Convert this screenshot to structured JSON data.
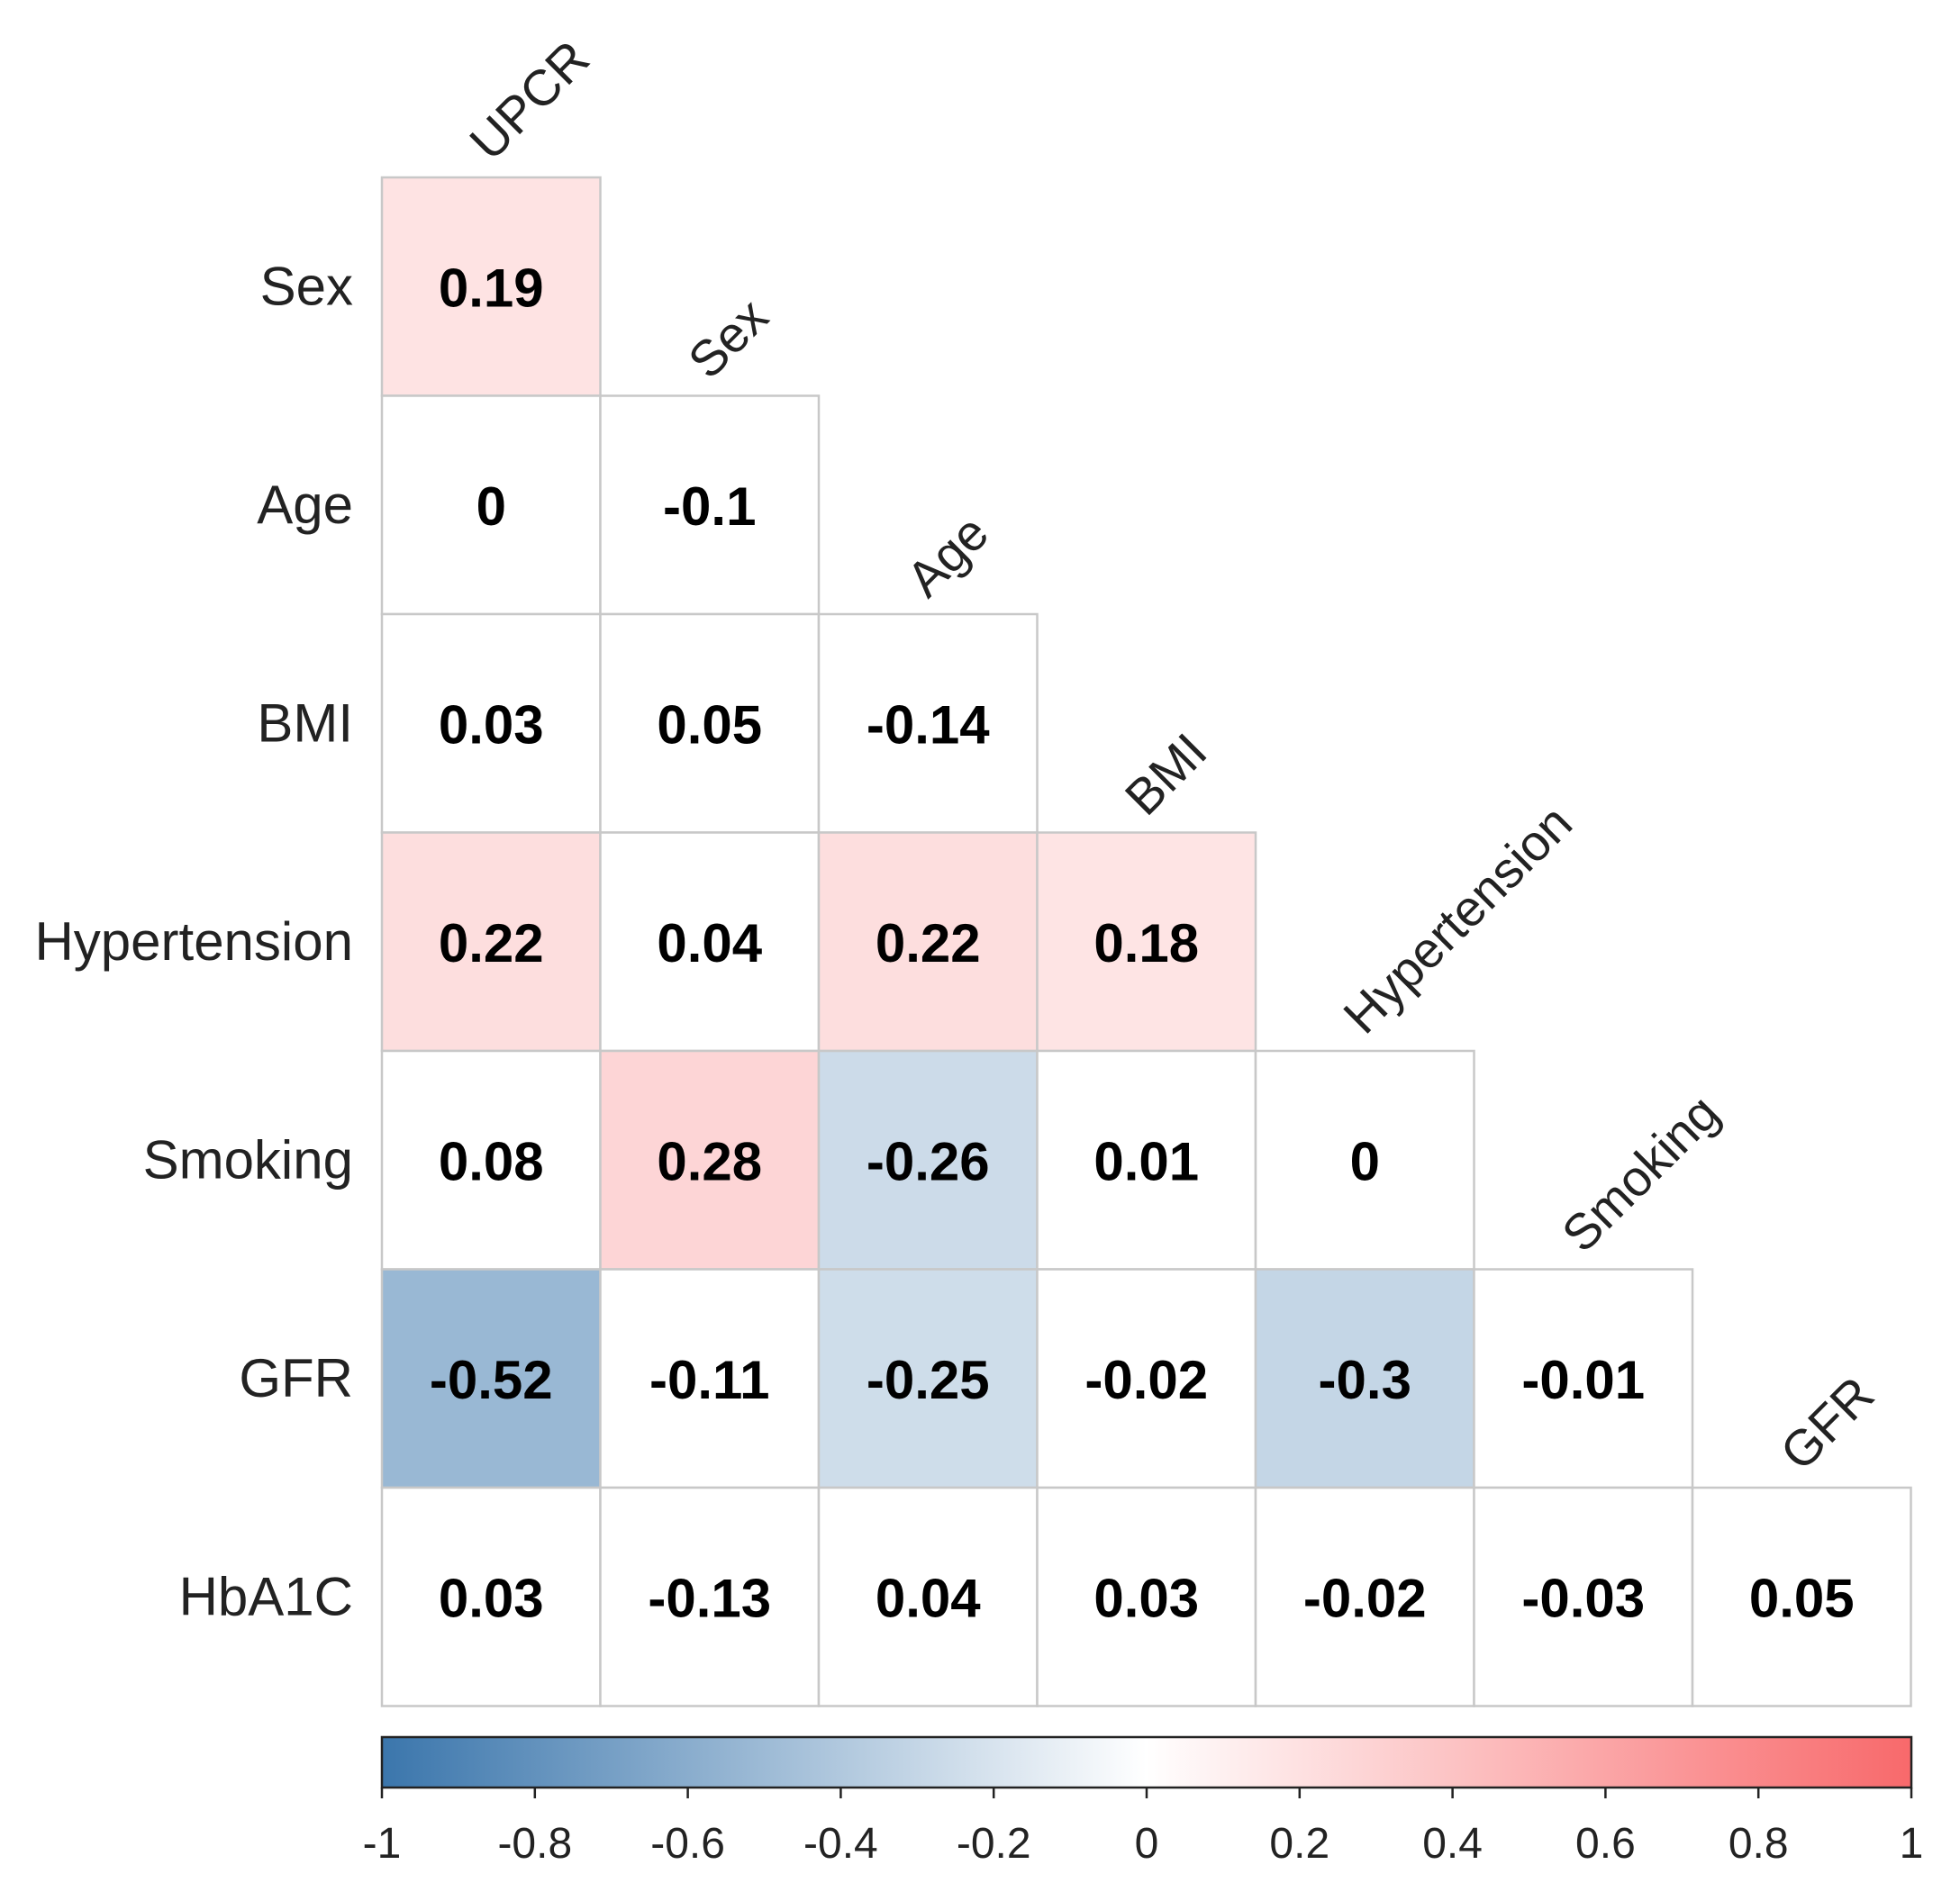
{
  "chart_data": {
    "type": "heatmap",
    "subtype": "lower-triangular correlation matrix",
    "row_labels": [
      "Sex",
      "Age",
      "BMI",
      "Hypertension",
      "Smoking",
      "GFR",
      "HbA1C"
    ],
    "column_labels": [
      "UPCR",
      "Sex",
      "Age",
      "BMI",
      "Hypertension",
      "Smoking",
      "GFR"
    ],
    "values": [
      [
        0.19
      ],
      [
        0,
        -0.1
      ],
      [
        0.03,
        0.05,
        -0.14
      ],
      [
        0.22,
        0.04,
        0.22,
        0.18
      ],
      [
        0.08,
        0.28,
        -0.26,
        0.01,
        0
      ],
      [
        -0.52,
        -0.11,
        -0.25,
        -0.02,
        -0.3,
        -0.01
      ],
      [
        0.03,
        -0.13,
        0.04,
        0.03,
        -0.02,
        -0.03,
        0.05
      ]
    ],
    "cell_labels": [
      [
        "0.19"
      ],
      [
        "0",
        "-0.1"
      ],
      [
        "0.03",
        "0.05",
        "-0.14"
      ],
      [
        "0.22",
        "0.04",
        "0.22",
        "0.18"
      ],
      [
        "0.08",
        "0.28",
        "-0.26",
        "0.01",
        "0"
      ],
      [
        "-0.52",
        "-0.11",
        "-0.25",
        "-0.02",
        "-0.3",
        "-0.01"
      ],
      [
        "0.03",
        "-0.13",
        "0.04",
        "0.03",
        "-0.02",
        "-0.03",
        "0.05"
      ]
    ],
    "colorbar": {
      "range": [
        -1,
        1
      ],
      "ticks": [
        -1,
        -0.8,
        -0.6,
        -0.4,
        -0.2,
        0,
        0.2,
        0.4,
        0.6,
        0.8,
        1
      ],
      "tick_labels": [
        "-1",
        "-0.8",
        "-0.6",
        "-0.4",
        "-0.2",
        "0",
        "0.2",
        "0.4",
        "0.6",
        "0.8",
        "1"
      ],
      "low_color": "#3b76ac",
      "mid_color": "#ffffff",
      "high_color": "#f8696b",
      "placement": "bottom"
    },
    "colored_threshold": 0.15,
    "title": "",
    "xlabel": "",
    "ylabel": ""
  }
}
